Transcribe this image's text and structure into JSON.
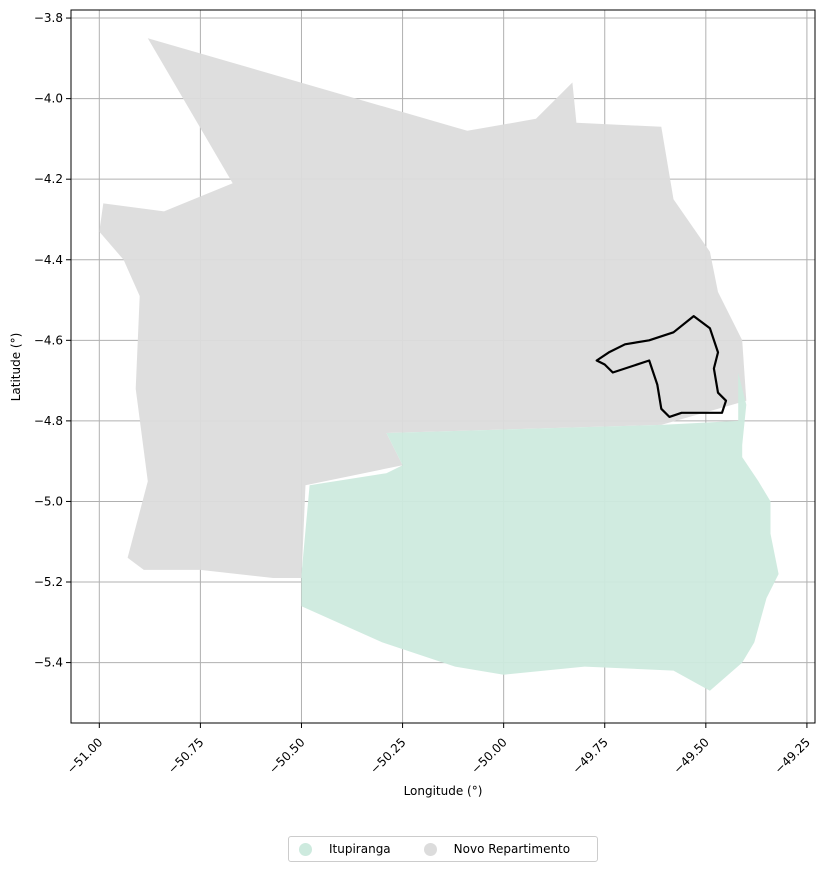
{
  "chart_data": {
    "type": "map",
    "xlabel": "Longitude (°)",
    "ylabel": "Latitude (°)",
    "xlim": [
      -51.07,
      -49.23
    ],
    "ylim": [
      -5.55,
      -3.78
    ],
    "x_ticks": [
      -51.0,
      -50.75,
      -50.5,
      -50.25,
      -50.0,
      -49.75,
      -49.5,
      -49.25
    ],
    "x_tick_labels": [
      "−51.00",
      "−50.75",
      "−50.50",
      "−50.25",
      "−50.00",
      "−49.75",
      "−49.50",
      "−49.25"
    ],
    "y_ticks": [
      -3.8,
      -4.0,
      -4.2,
      -4.4,
      -4.6,
      -4.8,
      -5.0,
      -5.2,
      -5.4
    ],
    "y_tick_labels": [
      "−3.8",
      "−4.0",
      "−4.2",
      "−4.4",
      "−4.6",
      "−4.8",
      "−5.0",
      "−5.2",
      "−5.4"
    ],
    "grid": true,
    "legend_position": "bottom-center",
    "series": [
      {
        "name": "Novo Repartimento",
        "color": "#dcdcdc",
        "outline": [
          [
            -50.88,
            -3.85
          ],
          [
            -50.09,
            -4.08
          ],
          [
            -49.92,
            -4.05
          ],
          [
            -49.83,
            -3.96
          ],
          [
            -49.82,
            -4.06
          ],
          [
            -49.61,
            -4.07
          ],
          [
            -49.58,
            -4.25
          ],
          [
            -49.49,
            -4.38
          ],
          [
            -49.47,
            -4.48
          ],
          [
            -49.41,
            -4.6
          ],
          [
            -49.4,
            -4.75
          ],
          [
            -49.61,
            -4.81
          ],
          [
            -50.29,
            -4.83
          ],
          [
            -50.25,
            -4.91
          ],
          [
            -50.49,
            -4.96
          ],
          [
            -50.5,
            -5.19
          ],
          [
            -50.57,
            -5.19
          ],
          [
            -50.75,
            -5.17
          ],
          [
            -50.89,
            -5.17
          ],
          [
            -50.93,
            -5.14
          ],
          [
            -50.88,
            -4.95
          ],
          [
            -50.91,
            -4.72
          ],
          [
            -50.9,
            -4.49
          ],
          [
            -50.94,
            -4.4
          ],
          [
            -51.0,
            -4.33
          ],
          [
            -50.99,
            -4.26
          ],
          [
            -50.84,
            -4.28
          ],
          [
            -50.67,
            -4.21
          ]
        ]
      },
      {
        "name": "Itupiranga",
        "color": "#cdeade",
        "outline": [
          [
            -50.29,
            -4.83
          ],
          [
            -49.61,
            -4.81
          ],
          [
            -49.42,
            -4.8
          ],
          [
            -49.42,
            -4.68
          ],
          [
            -49.4,
            -4.76
          ],
          [
            -49.41,
            -4.86
          ],
          [
            -49.41,
            -4.89
          ],
          [
            -49.37,
            -4.95
          ],
          [
            -49.34,
            -5.0
          ],
          [
            -49.34,
            -5.08
          ],
          [
            -49.32,
            -5.18
          ],
          [
            -49.35,
            -5.24
          ],
          [
            -49.38,
            -5.35
          ],
          [
            -49.41,
            -5.4
          ],
          [
            -49.49,
            -5.47
          ],
          [
            -49.58,
            -5.42
          ],
          [
            -49.8,
            -5.41
          ],
          [
            -50.0,
            -5.43
          ],
          [
            -50.12,
            -5.41
          ],
          [
            -50.3,
            -5.35
          ],
          [
            -50.5,
            -5.26
          ],
          [
            -50.5,
            -5.18
          ],
          [
            -50.48,
            -4.96
          ],
          [
            -50.29,
            -4.93
          ],
          [
            -50.25,
            -4.91
          ]
        ]
      }
    ],
    "overlay": {
      "color": "#000000",
      "outline": [
        [
          -49.77,
          -4.65
        ],
        [
          -49.74,
          -4.63
        ],
        [
          -49.7,
          -4.61
        ],
        [
          -49.64,
          -4.6
        ],
        [
          -49.58,
          -4.58
        ],
        [
          -49.53,
          -4.54
        ],
        [
          -49.49,
          -4.57
        ],
        [
          -49.47,
          -4.63
        ],
        [
          -49.48,
          -4.67
        ],
        [
          -49.47,
          -4.73
        ],
        [
          -49.45,
          -4.75
        ],
        [
          -49.46,
          -4.78
        ],
        [
          -49.56,
          -4.78
        ],
        [
          -49.59,
          -4.79
        ],
        [
          -49.61,
          -4.77
        ],
        [
          -49.62,
          -4.71
        ],
        [
          -49.64,
          -4.65
        ],
        [
          -49.7,
          -4.67
        ],
        [
          -49.73,
          -4.68
        ],
        [
          -49.75,
          -4.66
        ]
      ]
    }
  },
  "legend": {
    "items": [
      {
        "label": "Itupiranga",
        "color": "#cdeade"
      },
      {
        "label": "Novo Repartimento",
        "color": "#dcdcdc"
      }
    ]
  }
}
